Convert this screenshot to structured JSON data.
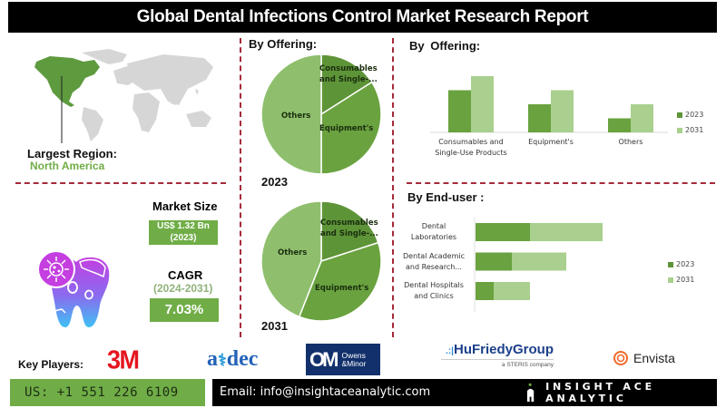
{
  "header": {
    "title": "Global Dental Infections Control Market Research Report"
  },
  "region": {
    "label": "Largest Region:",
    "value": "North America",
    "map_icon": "world-map-icon"
  },
  "market": {
    "size_label": "Market Size",
    "size_value": "US$ 1.32 Bn",
    "size_year": "(2023)",
    "cagr_label": "CAGR",
    "cagr_period": "(2024-2031)",
    "cagr_value": "7.03%",
    "illustration": "tooth-bacteria-icon"
  },
  "pies": {
    "heading": "By Offering:",
    "labels": {
      "consumables": "Consumables and Single-...",
      "consumables_l1": "Consumables",
      "consumables_l2": "and Single-...",
      "equipment": "Equipment's",
      "others": "Others"
    }
  },
  "colors": {
    "accent_green": "#70ad47",
    "dark_green": "#5e9438",
    "mid_green": "#6aa23f",
    "light_green": "#8fbf6d",
    "lighter_green": "#a9d08e",
    "divider": "#a52a3a"
  },
  "chart_data": [
    {
      "type": "pie",
      "title": "By Offering: 2023",
      "year_label": "2023",
      "categories": [
        "Consumables and Single-...",
        "Equipment's",
        "Others"
      ],
      "values": [
        16,
        34,
        50
      ]
    },
    {
      "type": "pie",
      "title": "By Offering: 2031",
      "year_label": "2031",
      "categories": [
        "Consumables and Single-...",
        "Equipment's",
        "Others"
      ],
      "values": [
        20,
        36,
        44
      ]
    },
    {
      "type": "bar",
      "title": "By  Offering:",
      "categories": [
        "Consumables and Single-Use Products",
        "Equipment's",
        "Others"
      ],
      "category_lines": [
        [
          "Consumables and",
          "Single-Use Products"
        ],
        [
          "Equipment's"
        ],
        [
          "Others"
        ]
      ],
      "series": [
        {
          "name": "2023",
          "values": [
            3,
            2,
            1
          ]
        },
        {
          "name": "2031",
          "values": [
            4,
            3,
            2
          ]
        }
      ],
      "ylim": [
        0,
        4
      ],
      "legend": "right"
    },
    {
      "type": "bar",
      "orientation": "horizontal",
      "stacked": true,
      "title": "By End-user :",
      "categories": [
        "Dental Laboratories",
        "Dental Academic and Research...",
        "Dental Hospitals and Clinics"
      ],
      "category_lines": [
        [
          "Dental",
          "Laboratories"
        ],
        [
          "Dental Academic",
          "and Research..."
        ],
        [
          "Dental Hospitals",
          "and Clinics"
        ]
      ],
      "series": [
        {
          "name": "2023",
          "values": [
            3,
            2,
            1
          ]
        },
        {
          "name": "2031",
          "values": [
            4,
            3,
            2
          ]
        }
      ],
      "xlim": [
        0,
        7
      ],
      "legend": "right"
    }
  ],
  "players": {
    "label": "Key Players:",
    "logos": [
      {
        "name": "3M",
        "text": "3M"
      },
      {
        "name": "A-dec",
        "text": "a·dec",
        "t1": "a",
        "t2": "dec"
      },
      {
        "name": "Owens & Minor",
        "l1": "Owens",
        "l2": "&Minor"
      },
      {
        "name": "HuFriedyGroup",
        "text": "HuFriedyGroup",
        "sub": "a STERIS company"
      },
      {
        "name": "Envista",
        "text": "Envista"
      }
    ]
  },
  "footer": {
    "phone": "US: +1 551 226 6109",
    "email": "Email: info@insightaceanalytic.com",
    "brand": "INSIGHT ACE ANALYTIC"
  }
}
